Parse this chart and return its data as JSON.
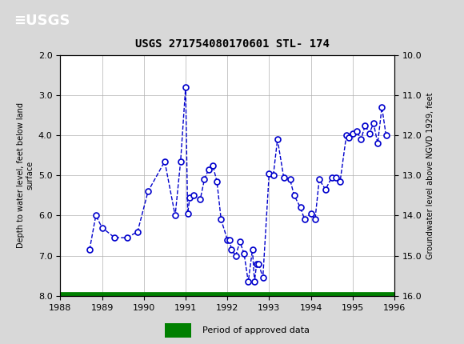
{
  "title": "USGS 271754080170601 STL- 174",
  "ylabel_left": "Depth to water level, feet below land\nsurface",
  "ylabel_right": "Groundwater level above NGVD 1929, feet",
  "xlim": [
    1988,
    1996
  ],
  "ylim_left": [
    2.0,
    8.0
  ],
  "ylim_right": [
    10.0,
    16.0
  ],
  "yticks_left": [
    2.0,
    3.0,
    4.0,
    5.0,
    6.0,
    7.0,
    8.0
  ],
  "yticks_right": [
    10.0,
    11.0,
    12.0,
    13.0,
    14.0,
    15.0,
    16.0
  ],
  "xticks": [
    1988,
    1989,
    1990,
    1991,
    1992,
    1993,
    1994,
    1995,
    1996
  ],
  "data_x": [
    1988.7,
    1988.85,
    1989.0,
    1989.3,
    1989.6,
    1989.85,
    1990.1,
    1990.5,
    1990.75,
    1990.88,
    1991.0,
    1991.05,
    1991.1,
    1991.2,
    1991.35,
    1991.45,
    1991.55,
    1991.65,
    1991.75,
    1991.85,
    1992.0,
    1992.05,
    1992.1,
    1992.2,
    1992.3,
    1992.4,
    1992.5,
    1992.6,
    1992.65,
    1992.7,
    1992.75,
    1992.85,
    1993.0,
    1993.1,
    1993.2,
    1993.35,
    1993.5,
    1993.6,
    1993.75,
    1993.85,
    1994.0,
    1994.1,
    1994.2,
    1994.35,
    1994.5,
    1994.6,
    1994.7,
    1994.85,
    1994.9,
    1995.0,
    1995.1,
    1995.2,
    1995.3,
    1995.4,
    1995.5,
    1995.6,
    1995.7,
    1995.8
  ],
  "data_y": [
    6.85,
    6.0,
    6.3,
    6.55,
    6.55,
    6.4,
    5.4,
    4.65,
    6.0,
    4.65,
    2.8,
    5.95,
    5.55,
    5.5,
    5.6,
    5.1,
    4.85,
    4.75,
    5.15,
    6.1,
    6.6,
    6.6,
    6.85,
    7.0,
    6.65,
    6.95,
    7.65,
    6.85,
    7.65,
    7.2,
    7.2,
    7.55,
    4.95,
    5.0,
    4.1,
    5.05,
    5.1,
    5.5,
    5.8,
    6.1,
    5.95,
    6.1,
    5.1,
    5.35,
    5.05,
    5.05,
    5.15,
    4.0,
    4.05,
    3.95,
    3.9,
    4.1,
    3.75,
    3.95,
    3.7,
    4.2,
    3.3,
    4.0
  ],
  "line_color": "#0000CC",
  "marker_color": "#0000CC",
  "marker_face": "white",
  "green_bar_color": "#008000",
  "legend_label": "Period of approved data",
  "header_bg": "#1a6b3c",
  "plot_bg": "#ffffff",
  "grid_color": "#b0b0b0",
  "fig_bg": "#d8d8d8"
}
